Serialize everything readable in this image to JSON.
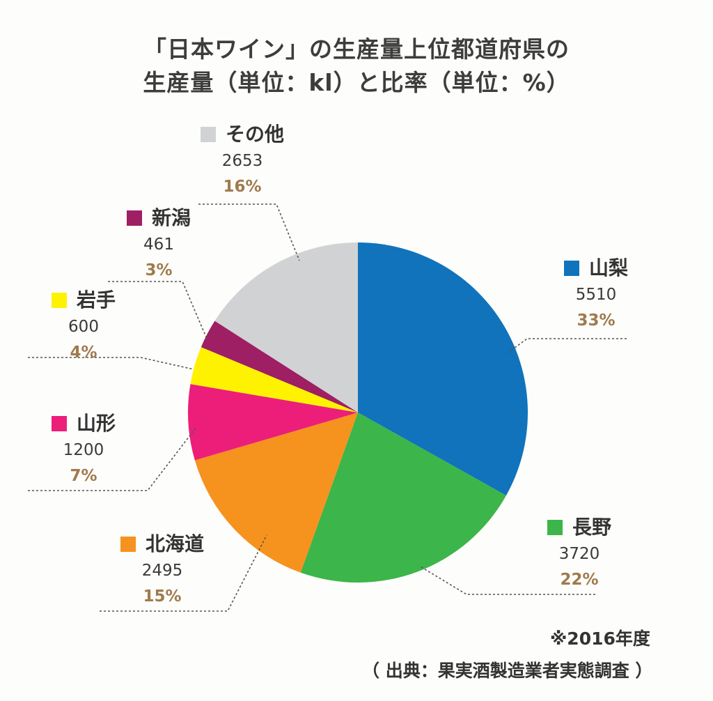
{
  "chart_data": {
    "type": "pie",
    "title_line1": "「日本ワイン」の生産量上位都道府県の",
    "title_line2": "生産量（単位：kl）と比率（単位：%）",
    "slices": [
      {
        "name": "山梨",
        "value": 5510,
        "percent": "33%",
        "color": "#1073bc"
      },
      {
        "name": "長野",
        "value": 3720,
        "percent": "22%",
        "color": "#3cb54a"
      },
      {
        "name": "北海道",
        "value": 2495,
        "percent": "15%",
        "color": "#f6921e"
      },
      {
        "name": "山形",
        "value": 1200,
        "percent": "7%",
        "color": "#ec1e79"
      },
      {
        "name": "岩手",
        "value": 600,
        "percent": "4%",
        "color": "#fff200"
      },
      {
        "name": "新潟",
        "value": 461,
        "percent": "3%",
        "color": "#9e1f63"
      },
      {
        "name": "その他",
        "value": 2653,
        "percent": "16%",
        "color": "#d1d2d4"
      }
    ],
    "note": "※2016年度",
    "source": "（ 出典：果実酒製造業者実態調査 ）"
  }
}
